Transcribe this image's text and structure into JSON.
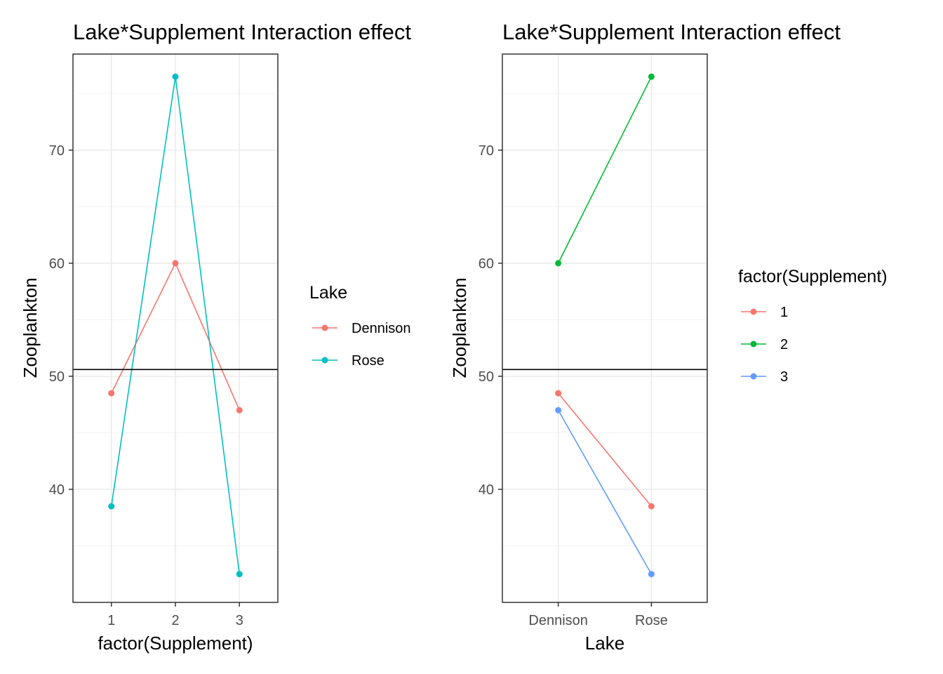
{
  "chart_data": [
    {
      "type": "line",
      "title": "Lake*Supplement Interaction effect",
      "xlabel": "factor(Supplement)",
      "ylabel": "Zooplankton",
      "categories": [
        "1",
        "2",
        "3"
      ],
      "ylim": [
        30,
        78.5
      ],
      "yticks": [
        "40",
        "50",
        "60",
        "70"
      ],
      "hline": 50.6,
      "grid": true,
      "legend": {
        "title": "Lake",
        "placement": "right"
      },
      "series": [
        {
          "name": "Dennison",
          "color": "#F8766D",
          "values": [
            48.5,
            60.0,
            47.0
          ]
        },
        {
          "name": "Rose",
          "color": "#00BFC4",
          "values": [
            38.5,
            76.5,
            32.5
          ]
        }
      ]
    },
    {
      "type": "line",
      "title": "Lake*Supplement Interaction effect",
      "xlabel": "Lake",
      "ylabel": "Zooplankton",
      "categories": [
        "Dennison",
        "Rose"
      ],
      "ylim": [
        30,
        78.5
      ],
      "yticks": [
        "40",
        "50",
        "60",
        "70"
      ],
      "hline": 50.6,
      "grid": true,
      "legend": {
        "title": "factor(Supplement)",
        "placement": "right"
      },
      "series": [
        {
          "name": "1",
          "color": "#F8766D",
          "values": [
            48.5,
            38.5
          ]
        },
        {
          "name": "2",
          "color": "#00BA38",
          "values": [
            60.0,
            76.5
          ]
        },
        {
          "name": "3",
          "color": "#619CFF",
          "values": [
            47.0,
            32.5
          ]
        }
      ]
    }
  ]
}
